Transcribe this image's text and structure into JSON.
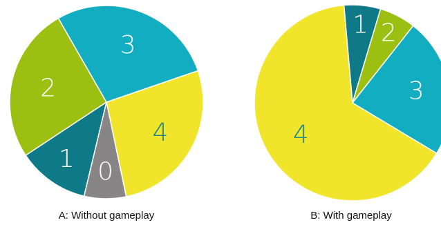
{
  "chart_data": [
    {
      "type": "pie",
      "caption": "A: Without gameplay",
      "slices": [
        {
          "label": "4",
          "value": 27,
          "color": "#f1e52c",
          "label_color": "#1b8a8a"
        },
        {
          "label": "0",
          "value": 7,
          "color": "#878585",
          "label_color": "#ffffff"
        },
        {
          "label": "1",
          "value": 12,
          "color": "#0f7a87",
          "label_color": "#ffffff"
        },
        {
          "label": "2",
          "value": 26,
          "color": "#9cbf12",
          "label_color": "#ffffff"
        },
        {
          "label": "3",
          "value": 28,
          "color": "#12adc0",
          "label_color": "#ffffff"
        }
      ]
    },
    {
      "type": "pie",
      "caption": "B: With gameplay",
      "slices": [
        {
          "label": "4",
          "value": 65,
          "color": "#f1e52c",
          "label_color": "#1b8a8a"
        },
        {
          "label": "1",
          "value": 6,
          "color": "#0f7a87",
          "label_color": "#ffffff"
        },
        {
          "label": "2",
          "value": 6,
          "color": "#9cbf12",
          "label_color": "#ffffff"
        },
        {
          "label": "3",
          "value": 23,
          "color": "#12adc0",
          "label_color": "#ffffff"
        }
      ]
    }
  ]
}
